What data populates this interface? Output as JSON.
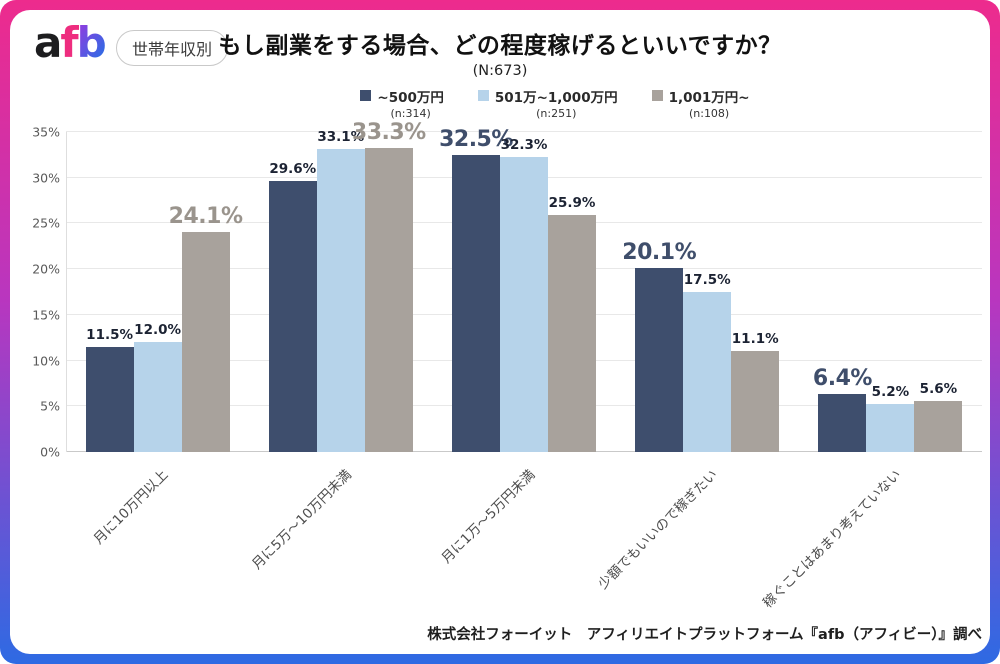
{
  "header": {
    "logo": "afb",
    "badge": "世帯年収別"
  },
  "chart_data": {
    "type": "bar",
    "title": "もし副業をする場合、どの程度稼げるといいですか？",
    "sample_size": "(N:673)",
    "categories": [
      "月に10万円以上",
      "月に5万～10万円未満",
      "月に1万～5万円未満",
      "少額でもいいので稼ぎたい",
      "稼ぐことはあまり考えていない"
    ],
    "series": [
      {
        "name": "~500万円",
        "n": "(n:314)",
        "color": "#3e4e6d",
        "em_color": "#3f4e6b",
        "values": [
          11.5,
          29.6,
          32.5,
          20.1,
          6.4
        ]
      },
      {
        "name": "501万~1,000万円",
        "n": "(n:251)",
        "color": "#b6d3ea",
        "em_color": "#7fa8c9",
        "values": [
          12.0,
          33.1,
          32.3,
          17.5,
          5.2
        ]
      },
      {
        "name": "1,001万円~",
        "n": "(n:108)",
        "color": "#a8a29c",
        "em_color": "#9a948d",
        "values": [
          24.1,
          33.3,
          25.9,
          11.1,
          5.6
        ]
      }
    ],
    "emphasis_by_category": [
      2,
      2,
      0,
      0,
      0
    ],
    "ylim": [
      0,
      35
    ],
    "ytick_step": 5,
    "yticks": [
      "0%",
      "5%",
      "10%",
      "15%",
      "20%",
      "25%",
      "30%",
      "35%"
    ],
    "grid": true,
    "legend_position": "top",
    "value_suffix": "%"
  },
  "footer": {
    "source": "株式会社フォーイット　アフィリエイトプラットフォーム『afb（アフィビー）』調べ"
  },
  "colors": {
    "frame_gradient_top": "#ed2b8d",
    "frame_gradient_mid": "#b936bf",
    "frame_gradient_bottom": "#2e6ae3",
    "logo_a": "#1d1d1f",
    "logo_f": "#ee2d7f",
    "logo_b_from": "#8a3fe0",
    "logo_b_to": "#2f6be4",
    "gridline": "#e8e8e8",
    "axis_text": "#595959"
  }
}
